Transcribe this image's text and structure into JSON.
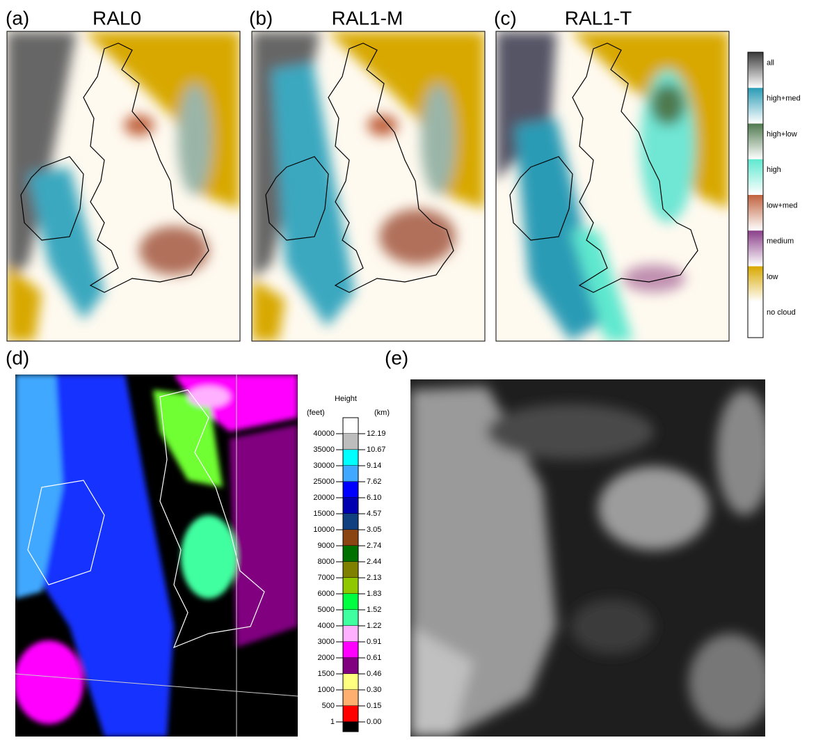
{
  "panels": [
    {
      "label": "(a)",
      "title": "RAL0"
    },
    {
      "label": "(b)",
      "title": "RAL1-M"
    },
    {
      "label": "(c)",
      "title": "RAL1-T"
    },
    {
      "label": "(d)"
    },
    {
      "label": "(e)"
    }
  ],
  "cloud_legend": {
    "entries": [
      {
        "label": "all",
        "color": "#3a3a3a"
      },
      {
        "label": "high+med",
        "color": "#2a9bb5"
      },
      {
        "label": "high+low",
        "color": "#4f7a4f"
      },
      {
        "label": "high",
        "color": "#5fe8cf"
      },
      {
        "label": "low+med",
        "color": "#c0623e"
      },
      {
        "label": "medium",
        "color": "#8a3f8a"
      },
      {
        "label": "low",
        "color": "#d8a800"
      },
      {
        "label": "no cloud",
        "color": "#ffffff"
      }
    ]
  },
  "height_legend": {
    "title": "Height",
    "left_unit": "(feet)",
    "right_unit": "(km)",
    "rows": [
      {
        "feet": "40000",
        "km": "12.19",
        "color": "#ffffff"
      },
      {
        "feet": "35000",
        "km": "10.67",
        "color": "#bdbdbd"
      },
      {
        "feet": "30000",
        "km": "9.14",
        "color": "#00ffff"
      },
      {
        "feet": "25000",
        "km": "7.62",
        "color": "#40a8ff"
      },
      {
        "feet": "20000",
        "km": "6.10",
        "color": "#0000ff"
      },
      {
        "feet": "15000",
        "km": "4.57",
        "color": "#0000b0"
      },
      {
        "feet": "10000",
        "km": "3.05",
        "color": "#104080"
      },
      {
        "feet": "9000",
        "km": "2.74",
        "color": "#8b4513"
      },
      {
        "feet": "8000",
        "km": "2.44",
        "color": "#007000"
      },
      {
        "feet": "7000",
        "km": "2.13",
        "color": "#808000"
      },
      {
        "feet": "6000",
        "km": "1.83",
        "color": "#90c800"
      },
      {
        "feet": "5000",
        "km": "1.52",
        "color": "#00ff40"
      },
      {
        "feet": "4000",
        "km": "1.22",
        "color": "#40ffa0"
      },
      {
        "feet": "3000",
        "km": "0.91",
        "color": "#ffb0ff"
      },
      {
        "feet": "2000",
        "km": "0.61",
        "color": "#ff00ff"
      },
      {
        "feet": "1500",
        "km": "0.46",
        "color": "#800080"
      },
      {
        "feet": "1000",
        "km": "0.30",
        "color": "#ffff80"
      },
      {
        "feet": "500",
        "km": "0.15",
        "color": "#ffb070"
      },
      {
        "feet": "1",
        "km": "0.00",
        "color": "#ff0000"
      }
    ]
  }
}
